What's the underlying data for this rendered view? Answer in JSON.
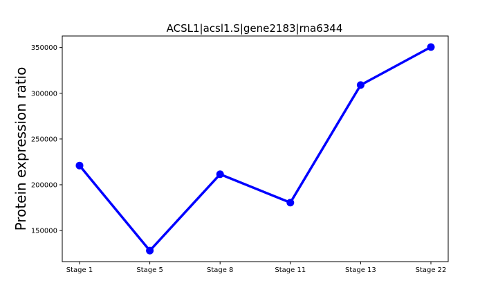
{
  "chart_data": {
    "type": "line",
    "title": "ACSL1|acsl1.S|gene2183|rna6344",
    "xlabel": "",
    "ylabel": "Protein expression ratio",
    "categories": [
      "Stage 1",
      "Stage 5",
      "Stage 8",
      "Stage 11",
      "Stage 13",
      "Stage 22"
    ],
    "series": [
      {
        "values": [
          221000,
          128000,
          211500,
          180500,
          309000,
          350500
        ],
        "color": "#0000ff"
      }
    ],
    "y_ticks": [
      150000,
      200000,
      250000,
      300000,
      350000
    ],
    "y_tick_labels": [
      "150000",
      "200000",
      "250000",
      "300000",
      "350000"
    ],
    "ylim": [
      116000,
      362600
    ],
    "grid": false,
    "legend": "none"
  }
}
